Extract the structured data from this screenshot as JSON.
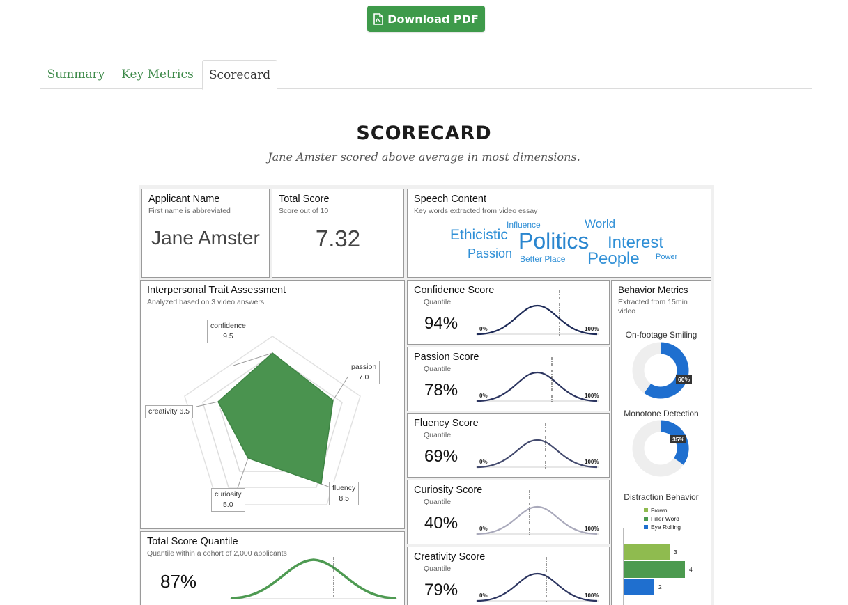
{
  "toolbar": {
    "download_label": "Download PDF",
    "icon": "pdf-file-icon"
  },
  "tabs": [
    {
      "label": "Summary",
      "active": false
    },
    {
      "label": "Key Metrics",
      "active": false
    },
    {
      "label": "Scorecard",
      "active": true
    }
  ],
  "scorecard": {
    "title": "SCORECARD",
    "subtitle": "Jane Amster scored above average in most dimensions."
  },
  "applicant": {
    "title": "Applicant Name",
    "sub": "First name is abbreviated",
    "name": "Jane Amster"
  },
  "total": {
    "title": "Total Score",
    "sub": "Score out of 10",
    "value": "7.32"
  },
  "speech": {
    "title": "Speech Content",
    "sub": "Key words extracted from video essay",
    "words": [
      "Ethicistic",
      "Influence",
      "Politics",
      "World",
      "Interest",
      "Passion",
      "Better Place",
      "People",
      "Power"
    ]
  },
  "traits": {
    "title": "Interpersonal Trait Assessment",
    "sub": "Analyzed based on 3 video answers",
    "items": [
      {
        "name": "confidence",
        "value": "9.5"
      },
      {
        "name": "passion",
        "value": "7.0"
      },
      {
        "name": "fluency",
        "value": "8.5"
      },
      {
        "name": "curiosity",
        "value": "5.0"
      },
      {
        "name": "creativity",
        "value": "6.5"
      }
    ],
    "creativity_label": "creativity 6.5",
    "fill_color": "#4a934f"
  },
  "quantile": {
    "title": "Total Score Quantile",
    "sub": "Quantile within a cohort of 2,000 applicants",
    "value": "87%",
    "line_color": "#4e9a52"
  },
  "scores": [
    {
      "title": "Confidence Score",
      "sub": "Quantile",
      "value": "94%",
      "color": "#1d2a57"
    },
    {
      "title": "Passion Score",
      "sub": "Quantile",
      "value": "78%",
      "color": "#2c3560"
    },
    {
      "title": "Fluency Score",
      "sub": "Quantile",
      "value": "69%",
      "color": "#434a6e"
    },
    {
      "title": "Curiosity Score",
      "sub": "Quantile",
      "value": "40%",
      "color": "#a9a9bb"
    },
    {
      "title": "Creativity Score",
      "sub": "Quantile",
      "value": "79%",
      "color": "#2c3560"
    }
  ],
  "axis": {
    "min": "0%",
    "max": "100%"
  },
  "behavior": {
    "title": "Behavior Metrics",
    "sub": "Extracted from 15min video",
    "smiling": {
      "title": "On-footage Smiling",
      "value": "60%"
    },
    "monotone": {
      "title": "Monotone Detection",
      "value": "35%"
    },
    "distraction": {
      "title": "Distraction Behavior",
      "legend": [
        "Frown",
        "Filler Word",
        "Eye Rolling"
      ],
      "values": [
        "3",
        "4",
        "2"
      ],
      "colors": [
        "#8fbb4f",
        "#4c9a4f",
        "#1f6fcf"
      ]
    },
    "donut_color": "#1f6fcf"
  }
}
